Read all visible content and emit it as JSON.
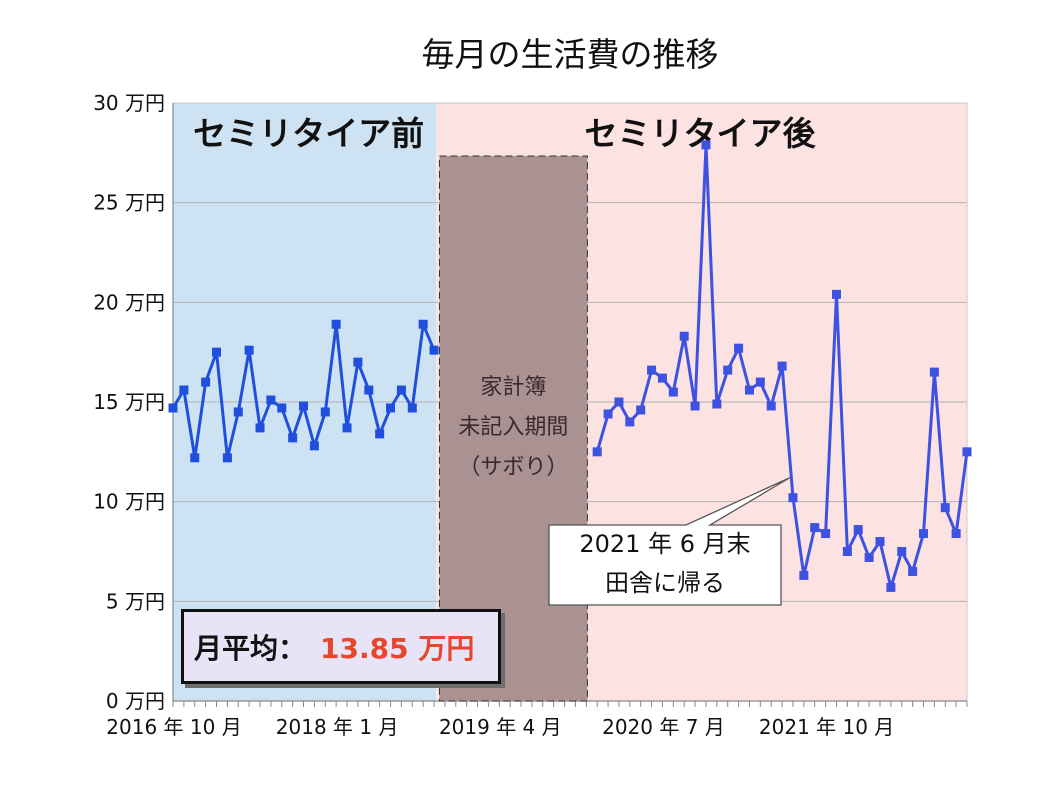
{
  "chart_data": {
    "type": "line",
    "title": "毎月の生活費の推移",
    "unit": "万円",
    "ylim": [
      0,
      30
    ],
    "y_ticks": [
      0,
      5,
      10,
      15,
      20,
      25,
      30
    ],
    "y_tick_labels": [
      "0 万円",
      "5 万円",
      "10 万円",
      "15 万円",
      "20 万円",
      "25 万円",
      "30 万円"
    ],
    "x_tick_labels": [
      {
        "month_index": 0,
        "label": "2016 年 10 月"
      },
      {
        "month_index": 15,
        "label": "2018 年 1 月"
      },
      {
        "month_index": 30,
        "label": "2019 年 4 月"
      },
      {
        "month_index": 45,
        "label": "2020 年 7 月"
      },
      {
        "month_index": 60,
        "label": "2021 年 10 月"
      }
    ],
    "month_count": 73,
    "series": [
      {
        "segment": "before",
        "color": "#1f4fdc",
        "points": [
          [
            0,
            14.7
          ],
          [
            1,
            15.6
          ],
          [
            2,
            12.2
          ],
          [
            3,
            16.0
          ],
          [
            4,
            17.5
          ],
          [
            5,
            12.2
          ],
          [
            6,
            14.5
          ],
          [
            7,
            17.6
          ],
          [
            8,
            13.7
          ],
          [
            9,
            15.1
          ],
          [
            10,
            14.7
          ],
          [
            11,
            13.2
          ],
          [
            12,
            14.8
          ],
          [
            13,
            12.8
          ],
          [
            14,
            14.5
          ],
          [
            15,
            18.9
          ],
          [
            16,
            13.7
          ],
          [
            17,
            17.0
          ],
          [
            18,
            15.6
          ],
          [
            19,
            13.4
          ],
          [
            20,
            14.7
          ],
          [
            21,
            15.6
          ],
          [
            22,
            14.7
          ],
          [
            23,
            18.9
          ],
          [
            24,
            17.6
          ]
        ]
      },
      {
        "segment": "after",
        "color": "#3d52e0",
        "points": [
          [
            39,
            12.5
          ],
          [
            40,
            14.4
          ],
          [
            41,
            15.0
          ],
          [
            42,
            14.0
          ],
          [
            43,
            14.6
          ],
          [
            44,
            16.6
          ],
          [
            45,
            16.2
          ],
          [
            46,
            15.5
          ],
          [
            47,
            18.3
          ],
          [
            48,
            14.8
          ],
          [
            49,
            27.9
          ],
          [
            50,
            14.9
          ],
          [
            51,
            16.6
          ],
          [
            52,
            17.7
          ],
          [
            53,
            15.6
          ],
          [
            54,
            16.0
          ],
          [
            55,
            14.8
          ],
          [
            56,
            16.8
          ],
          [
            57,
            10.2
          ],
          [
            58,
            6.3
          ],
          [
            59,
            8.7
          ],
          [
            60,
            8.4
          ],
          [
            61,
            20.4
          ],
          [
            62,
            7.5
          ],
          [
            63,
            8.6
          ],
          [
            64,
            7.2
          ],
          [
            65,
            8.0
          ],
          [
            66,
            5.7
          ],
          [
            67,
            7.5
          ],
          [
            68,
            6.5
          ],
          [
            69,
            8.4
          ],
          [
            70,
            16.5
          ],
          [
            71,
            9.7
          ],
          [
            72,
            8.4
          ],
          [
            73,
            12.5
          ]
        ]
      }
    ],
    "regions": [
      {
        "name": "セミリタイア前",
        "from_index": 0,
        "to_index": 24.2,
        "color": "#cde3f4"
      },
      {
        "name": "セミリタイア後",
        "from_index": 24.2,
        "to_index": 73,
        "color": "#fde2e2"
      }
    ],
    "gap_region": {
      "from_index": 24.5,
      "to_index": 38.1,
      "color": "#aa9293",
      "lines": [
        "家計簿",
        "未記入期間",
        "（サボり）"
      ]
    },
    "callout": {
      "lines": [
        "2021 年 6 月末",
        "田舎に帰る"
      ],
      "target_index": 56.7,
      "target_value": 11.2
    },
    "average": {
      "label": "月平均：",
      "value": "13.85 万円"
    }
  }
}
